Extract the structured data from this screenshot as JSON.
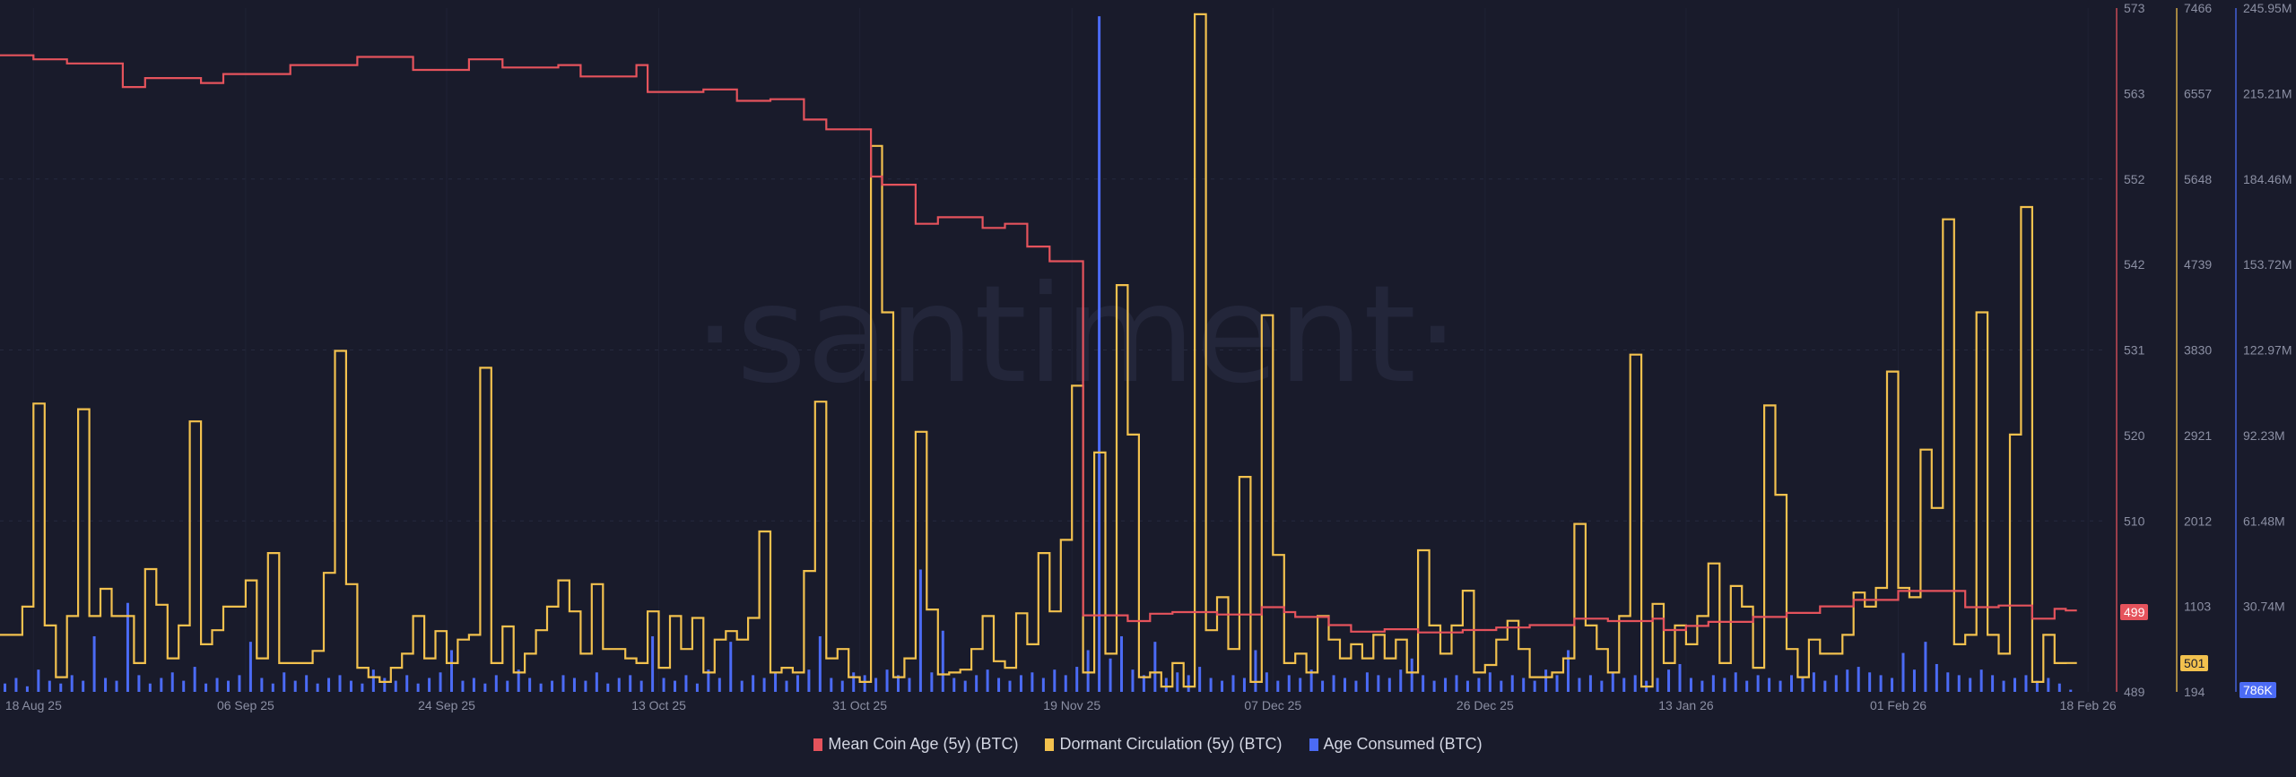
{
  "chart_data": {
    "type": "line",
    "watermark": "·santiment·",
    "frequency": "daily",
    "xlim": [
      "2025-08-15",
      "2026-02-21"
    ],
    "grid": true,
    "legend_placement": "bottom-center",
    "x_ticks": [
      {
        "label": "18 Aug 25",
        "date": "2025-08-18"
      },
      {
        "label": "06 Sep 25",
        "date": "2025-09-06"
      },
      {
        "label": "24 Sep 25",
        "date": "2025-09-24"
      },
      {
        "label": "13 Oct 25",
        "date": "2025-10-13"
      },
      {
        "label": "31 Oct 25",
        "date": "2025-10-31"
      },
      {
        "label": "19 Nov 25",
        "date": "2025-11-19"
      },
      {
        "label": "07 Dec 25",
        "date": "2025-12-07"
      },
      {
        "label": "26 Dec 25",
        "date": "2025-12-26"
      },
      {
        "label": "13 Jan 26",
        "date": "2026-01-13"
      },
      {
        "label": "01 Feb 26",
        "date": "2026-02-01"
      },
      {
        "label": "18 Feb 26",
        "date": "2026-02-18"
      }
    ],
    "series": [
      {
        "name": "Mean Coin Age (5y) (BTC)",
        "color": "#e5535c",
        "style": "step",
        "axis": {
          "ylim": [
            489,
            573
          ],
          "ticks": [
            "573",
            "563",
            "552",
            "542",
            "531",
            "520",
            "510",
            "499",
            "489"
          ]
        },
        "last_value": "499",
        "values": [
          567.2,
          567.2,
          567.2,
          566.7,
          566.7,
          566.7,
          566.2,
          566.2,
          566.2,
          566.2,
          566.2,
          563.3,
          563.3,
          564.4,
          564.4,
          564.4,
          564.4,
          564.4,
          563.8,
          563.8,
          564.9,
          564.9,
          564.9,
          564.9,
          564.9,
          564.9,
          566.0,
          566.0,
          566.0,
          566.0,
          566.0,
          566.0,
          567.0,
          567.0,
          567.0,
          567.0,
          567.0,
          565.4,
          565.4,
          565.4,
          565.4,
          565.4,
          566.7,
          566.7,
          566.7,
          565.7,
          565.7,
          565.7,
          565.7,
          565.7,
          566.0,
          566.0,
          564.6,
          564.6,
          564.6,
          564.6,
          564.6,
          566.0,
          562.7,
          562.7,
          562.7,
          562.7,
          562.7,
          563.0,
          563.0,
          563.0,
          561.6,
          561.6,
          561.6,
          561.8,
          561.8,
          561.8,
          559.3,
          559.3,
          558.1,
          558.1,
          558.1,
          558.1,
          552.3,
          551.3,
          551.3,
          551.3,
          546.5,
          546.5,
          547.3,
          547.3,
          547.3,
          547.3,
          546.0,
          546.0,
          546.5,
          546.5,
          543.7,
          543.7,
          541.9,
          541.9,
          541.9,
          498.4,
          498.4,
          498.4,
          498.4,
          497.7,
          497.7,
          498.6,
          498.6,
          498.8,
          498.8,
          498.8,
          498.8,
          498.5,
          498.5,
          498.5,
          498.5,
          499.4,
          499.4,
          498.8,
          498.2,
          498.2,
          498.2,
          497.2,
          497.2,
          496.4,
          496.4,
          496.4,
          496.7,
          496.7,
          496.7,
          496.3,
          496.3,
          496.3,
          496.3,
          496.6,
          496.6,
          496.6,
          496.9,
          496.9,
          496.9,
          497.2,
          497.2,
          497.2,
          497.2,
          498.0,
          498.0,
          498.0,
          497.7,
          497.7,
          497.7,
          497.7,
          498.0,
          496.6,
          496.6,
          497.1,
          497.1,
          497.6,
          497.6,
          497.6,
          497.6,
          498.2,
          498.2,
          498.2,
          498.7,
          498.7,
          498.7,
          499.5,
          499.5,
          499.5,
          500.3,
          500.3,
          500.3,
          500.3,
          501.4,
          501.4,
          501.4,
          501.4,
          501.4,
          501.4,
          499.4,
          499.4,
          499.4,
          499.6,
          499.6,
          499.6,
          498.0,
          498.0,
          499.2,
          499.0
        ]
      },
      {
        "name": "Dormant Circulation (5y) (BTC)",
        "color": "#f2c14e",
        "style": "step",
        "axis": {
          "ylim": [
            194,
            7466
          ],
          "ticks": [
            "7466",
            "6557",
            "5648",
            "4739",
            "3830",
            "2921",
            "2012",
            "1103",
            "194"
          ]
        },
        "last_value": "501",
        "values": [
          800,
          800,
          1100,
          3260,
          900,
          350,
          1000,
          3200,
          1000,
          1290,
          1000,
          1000,
          500,
          1500,
          1120,
          550,
          900,
          3070,
          700,
          850,
          1100,
          1100,
          1380,
          550,
          1670,
          500,
          500,
          500,
          630,
          1460,
          3820,
          1340,
          450,
          350,
          300,
          450,
          600,
          1000,
          550,
          840,
          500,
          750,
          800,
          3640,
          500,
          890,
          400,
          600,
          850,
          1100,
          1380,
          1050,
          600,
          1340,
          650,
          650,
          550,
          500,
          1050,
          450,
          1000,
          650,
          980,
          400,
          750,
          840,
          750,
          980,
          1900,
          400,
          450,
          400,
          1480,
          3280,
          550,
          650,
          350,
          300,
          6000,
          4230,
          350,
          550,
          2960,
          1070,
          380,
          400,
          430,
          650,
          1000,
          520,
          450,
          1030,
          700,
          1670,
          1050,
          1810,
          3450,
          400,
          2740,
          600,
          4520,
          2930,
          350,
          400,
          250,
          500,
          250,
          7400,
          850,
          1200,
          650,
          2480,
          300,
          4200,
          1650,
          500,
          600,
          400,
          1000,
          750,
          550,
          700,
          550,
          800,
          550,
          750,
          400,
          1700,
          900,
          600,
          900,
          1270,
          400,
          480,
          750,
          950,
          650,
          350,
          350,
          400,
          550,
          1980,
          900,
          650,
          400,
          1000,
          3780,
          250,
          1130,
          500,
          900,
          700,
          1000,
          1560,
          500,
          1320,
          1100,
          450,
          3240,
          2290,
          650,
          350,
          750,
          600,
          600,
          800,
          1250,
          1100,
          1300,
          3600,
          1300,
          1200,
          2770,
          2150,
          5220,
          700,
          800,
          4230,
          800,
          600,
          2930,
          5350,
          300,
          800,
          500,
          501
        ]
      },
      {
        "name": "Age Consumed (BTC)",
        "color": "#4b6bf5",
        "style": "bar",
        "unit": "M",
        "axis": {
          "ylim": [
            0,
            245.95
          ],
          "ticks": [
            "245.95M",
            "215.21M",
            "184.46M",
            "153.72M",
            "122.97M",
            "92.23M",
            "61.48M",
            "30.74M"
          ]
        },
        "last_value": "786K",
        "values": [
          3,
          5,
          2,
          8,
          4,
          3,
          6,
          4,
          20,
          5,
          4,
          32,
          6,
          3,
          5,
          7,
          4,
          9,
          3,
          5,
          4,
          6,
          18,
          5,
          3,
          7,
          4,
          6,
          3,
          5,
          6,
          4,
          3,
          8,
          5,
          4,
          6,
          3,
          5,
          7,
          15,
          4,
          5,
          3,
          6,
          4,
          8,
          5,
          3,
          4,
          6,
          5,
          4,
          7,
          3,
          5,
          6,
          4,
          20,
          5,
          4,
          6,
          3,
          8,
          5,
          18,
          4,
          6,
          5,
          7,
          4,
          6,
          8,
          20,
          5,
          4,
          7,
          6,
          5,
          8,
          6,
          5,
          44,
          7,
          22,
          5,
          4,
          6,
          8,
          5,
          4,
          6,
          7,
          5,
          8,
          6,
          9,
          15,
          243,
          12,
          20,
          8,
          6,
          18,
          5,
          7,
          6,
          9,
          5,
          4,
          6,
          5,
          15,
          7,
          4,
          6,
          5,
          8,
          4,
          6,
          5,
          4,
          7,
          6,
          5,
          8,
          12,
          6,
          4,
          5,
          6,
          4,
          5,
          7,
          4,
          6,
          5,
          4,
          8,
          6,
          15,
          5,
          6,
          4,
          7,
          5,
          6,
          4,
          5,
          8,
          10,
          5,
          4,
          6,
          5,
          7,
          4,
          6,
          5,
          4,
          6,
          5,
          7,
          4,
          6,
          8,
          9,
          7,
          6,
          5,
          14,
          8,
          18,
          10,
          7,
          6,
          5,
          8,
          6,
          4,
          5,
          6,
          4,
          5,
          3,
          0.786
        ]
      }
    ]
  }
}
